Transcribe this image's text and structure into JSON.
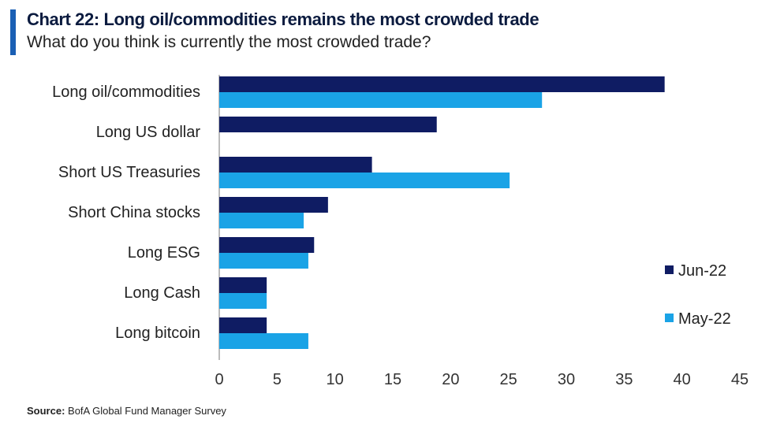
{
  "header": {
    "title": "Chart 22: Long oil/commodities remains the most crowded trade",
    "subtitle": "What do you think is currently the most crowded trade?"
  },
  "source": {
    "label": "Source:",
    "text": "BofA Global Fund Manager Survey"
  },
  "colors": {
    "jun": "#0f1c63",
    "may": "#1aa3e6",
    "accent": "#1a5fb4"
  },
  "chart_data": {
    "type": "bar",
    "orientation": "horizontal",
    "categories": [
      "Long oil/commodities",
      "Long US dollar",
      "Short US Treasuries",
      "Short China stocks",
      "Long ESG",
      "Long Cash",
      "Long bitcoin"
    ],
    "series": [
      {
        "name": "Jun-22",
        "values": [
          38.5,
          18.8,
          13.2,
          9.4,
          8.2,
          4.1,
          4.1
        ]
      },
      {
        "name": "May-22",
        "values": [
          27.9,
          0,
          25.1,
          7.3,
          7.7,
          4.1,
          7.7
        ]
      }
    ],
    "xlim": [
      0,
      45
    ],
    "xticks": [
      0,
      5,
      10,
      15,
      20,
      25,
      30,
      35,
      40,
      45
    ],
    "legend_position": "right",
    "grid": false
  }
}
